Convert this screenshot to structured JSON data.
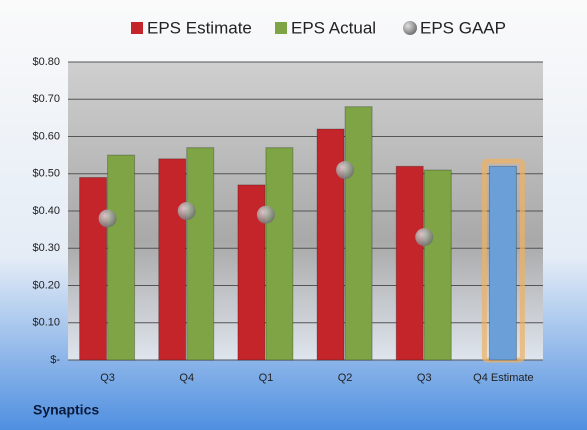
{
  "chart_data": {
    "type": "bar",
    "title": "Synaptics",
    "categories": [
      "Q3",
      "Q4",
      "Q1",
      "Q2",
      "Q3",
      "Q4 Estimate"
    ],
    "series": [
      {
        "name": "EPS Estimate",
        "color": "#c4252b",
        "values": [
          0.49,
          0.54,
          0.47,
          0.62,
          0.52,
          0.52
        ],
        "colors": [
          "#c4252b",
          "#c4252b",
          "#c4252b",
          "#c4252b",
          "#c4252b",
          "#6a9fd8"
        ]
      },
      {
        "name": "EPS Actual",
        "color": "#7ea445",
        "values": [
          0.55,
          0.57,
          0.57,
          0.68,
          0.51,
          null
        ]
      },
      {
        "name": "EPS GAAP",
        "color": "#8a8a8a",
        "marker": "circle",
        "values": [
          0.38,
          0.4,
          0.39,
          0.51,
          0.33,
          null
        ]
      }
    ],
    "ylim": [
      0,
      0.8
    ],
    "yticks": [
      {
        "value": 0,
        "label": "$-"
      },
      {
        "value": 0.1,
        "label": "$0.10"
      },
      {
        "value": 0.2,
        "label": "$0.20"
      },
      {
        "value": 0.3,
        "label": "$0.30"
      },
      {
        "value": 0.4,
        "label": "$0.40"
      },
      {
        "value": 0.5,
        "label": "$0.50"
      },
      {
        "value": 0.6,
        "label": "$0.60"
      },
      {
        "value": 0.7,
        "label": "$0.70"
      },
      {
        "value": 0.8,
        "label": "$0.80"
      }
    ],
    "grid": true,
    "legend": "top"
  }
}
